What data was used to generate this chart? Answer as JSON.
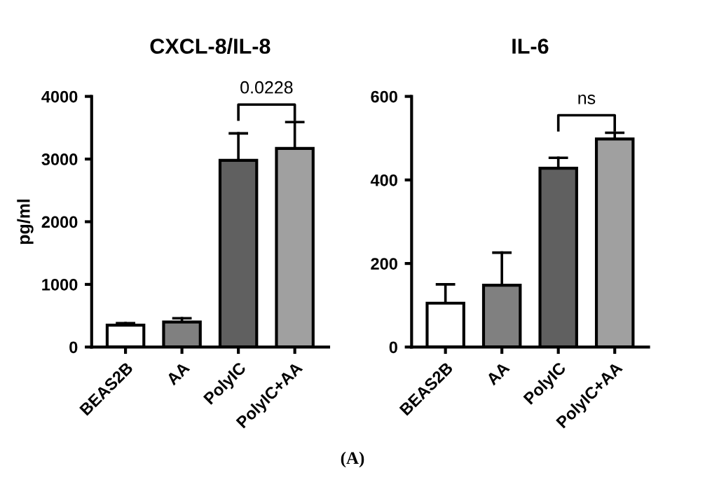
{
  "chart_data": [
    {
      "type": "bar",
      "title": "CXCL-8/IL-8",
      "ylabel": "pg/ml",
      "categories": [
        "BEAS2B",
        "AA",
        "PolyIC",
        "PolyIC+AA"
      ],
      "colors": [
        "#ffffff",
        "#808080",
        "#606060",
        "#a0a0a0"
      ],
      "values": [
        350,
        400,
        2980,
        3170
      ],
      "errors": [
        [
          350,
          380
        ],
        [
          400,
          460
        ],
        [
          2980,
          3410
        ],
        [
          3170,
          3590
        ]
      ],
      "ylim": [
        0,
        4000
      ],
      "yticks": [
        0,
        1000,
        2000,
        3000,
        4000
      ],
      "grid": false,
      "annotations": [
        "0.0228",
        "(A)"
      ]
    },
    {
      "type": "bar",
      "title": "IL-6",
      "categories": [
        "BEAS2B",
        "AA",
        "PolyIC",
        "PolyIC+AA"
      ],
      "colors": [
        "#ffffff",
        "#808080",
        "#606060",
        "#a0a0a0"
      ],
      "values": [
        105,
        148,
        428,
        498
      ],
      "errors": [
        [
          105,
          150
        ],
        [
          148,
          226
        ],
        [
          428,
          453
        ],
        [
          498,
          513
        ]
      ],
      "ylim": [
        0,
        600
      ],
      "yticks": [
        0,
        200,
        400,
        600
      ],
      "grid": false,
      "annotations": [
        "ns"
      ]
    }
  ]
}
